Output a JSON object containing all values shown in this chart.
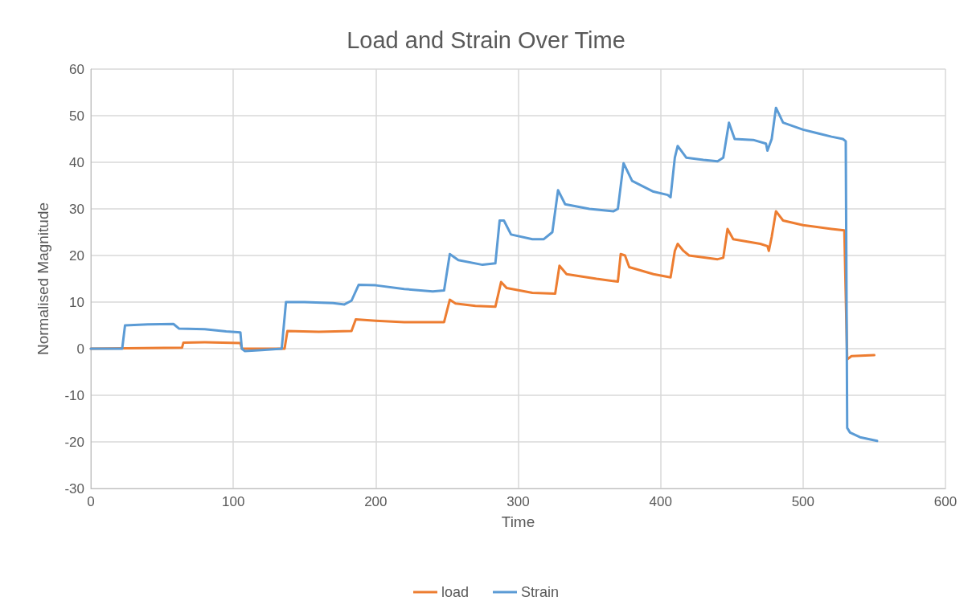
{
  "chart_data": {
    "type": "line",
    "title": "Load and Strain Over Time",
    "xlabel": "Time",
    "ylabel": "Normalised Magnitude",
    "xlim": [
      0,
      600
    ],
    "xticks": [
      0,
      100,
      200,
      300,
      400,
      500,
      600
    ],
    "ylim": [
      -30,
      60
    ],
    "yticks": [
      -30,
      -20,
      -10,
      0,
      10,
      20,
      30,
      40,
      50,
      60
    ],
    "grid": true,
    "legend": "bottom",
    "marker": "none",
    "line_style": "solid",
    "series": [
      {
        "name": "load",
        "color": "#ed7d31",
        "x": [
          0,
          64,
          65,
          80,
          105,
          106,
          136,
          138,
          160,
          183,
          186,
          200,
          220,
          248,
          252,
          256,
          270,
          284,
          288,
          292,
          310,
          326,
          329,
          334,
          355,
          370,
          372,
          375,
          378,
          395,
          407,
          410,
          412,
          416,
          420,
          440,
          444,
          447,
          451,
          470,
          475,
          476,
          478,
          481,
          486,
          500,
          520,
          529,
          531,
          534,
          550
        ],
        "values": [
          0,
          0.2,
          1.3,
          1.4,
          1.2,
          0,
          0,
          3.8,
          3.6,
          3.8,
          6.3,
          6,
          5.7,
          5.7,
          10.5,
          9.7,
          9.2,
          9,
          14.3,
          13,
          12,
          11.8,
          17.8,
          16,
          15,
          14.4,
          20.3,
          20,
          17.5,
          16,
          15.3,
          21,
          22.5,
          21,
          20,
          19.2,
          19.5,
          25.7,
          23.5,
          22.5,
          22,
          21,
          24,
          29.5,
          27.5,
          26.5,
          25.7,
          25.4,
          -2.3,
          -1.6,
          -1.4
        ]
      },
      {
        "name": "Strain",
        "color": "#5b9bd5",
        "x": [
          0,
          22,
          24,
          40,
          58,
          62,
          80,
          95,
          105,
          106,
          108,
          120,
          134,
          137,
          150,
          170,
          178,
          183,
          188,
          200,
          220,
          240,
          248,
          252,
          258,
          275,
          284,
          287,
          290,
          295,
          310,
          318,
          324,
          328,
          333,
          350,
          367,
          370,
          374,
          380,
          395,
          405,
          407,
          410,
          412,
          418,
          430,
          440,
          444,
          448,
          452,
          465,
          474,
          475,
          478,
          481,
          486,
          500,
          520,
          528,
          530,
          531,
          533,
          540,
          552
        ],
        "values": [
          0,
          0,
          5,
          5.2,
          5.3,
          4.3,
          4.2,
          3.7,
          3.5,
          0,
          -0.5,
          -0.3,
          0,
          10,
          10,
          9.8,
          9.5,
          10.3,
          13.7,
          13.6,
          12.8,
          12.3,
          12.5,
          20.3,
          19,
          18,
          18.3,
          27.5,
          27.5,
          24.5,
          23.5,
          23.5,
          25,
          34,
          31,
          30,
          29.5,
          30,
          39.8,
          36,
          33.7,
          33,
          32.5,
          41,
          43.5,
          41,
          40.5,
          40.2,
          41,
          48.5,
          45,
          44.8,
          44,
          42.5,
          45,
          51.7,
          48.5,
          47,
          45.5,
          45,
          44.5,
          -17,
          -18,
          -19,
          -19.8
        ]
      }
    ]
  }
}
